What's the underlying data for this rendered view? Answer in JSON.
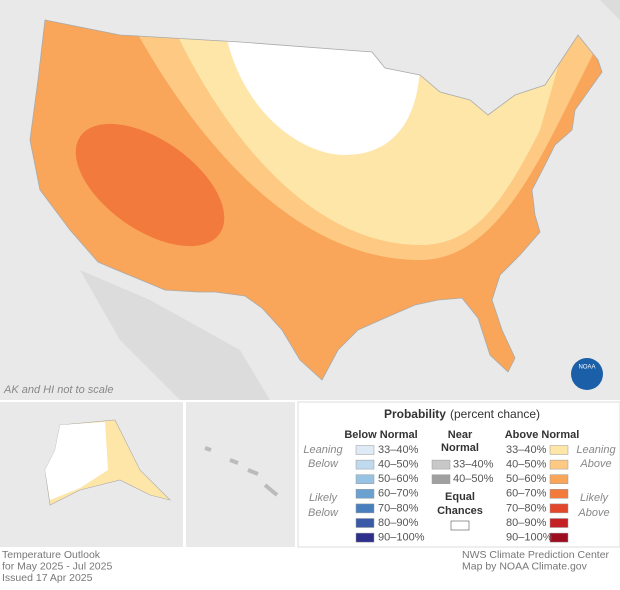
{
  "map": {
    "note": "AK and HI not to scale",
    "logo": "NOAA"
  },
  "legend": {
    "title": "Probability",
    "subtitle": "(percent chance)",
    "below": {
      "heading": "Below Normal",
      "ranges": [
        "33–40%",
        "40–50%",
        "50–60%",
        "60–70%",
        "70–80%",
        "80–90%",
        "90–100%"
      ],
      "colors": [
        "#deebf7",
        "#bfd9ee",
        "#97c2e1",
        "#6ba1d0",
        "#4a7fbd",
        "#3a5aa7",
        "#2e2e8c"
      ],
      "leaning": [
        "Leaning",
        "Below"
      ],
      "likely": [
        "Likely",
        "Below"
      ]
    },
    "near": {
      "heading": [
        "Near",
        "Normal"
      ],
      "ranges": [
        "33–40%",
        "40–50%"
      ],
      "colors": [
        "#c8c8c8",
        "#a0a0a0"
      ]
    },
    "equal": {
      "label": [
        "Equal",
        "Chances"
      ],
      "color": "#ffffff"
    },
    "above": {
      "heading": "Above Normal",
      "ranges": [
        "33–40%",
        "40–50%",
        "50–60%",
        "60–70%",
        "70–80%",
        "80–90%",
        "90–100%"
      ],
      "colors": [
        "#fde6a8",
        "#fdc983",
        "#f9a65a",
        "#f27a3d",
        "#e3472b",
        "#c62027",
        "#9d0d1f"
      ],
      "leaning": [
        "Leaning",
        "Above"
      ],
      "likely": [
        "Likely",
        "Above"
      ]
    }
  },
  "footer": {
    "left": [
      "Temperature Outlook",
      "for May 2025 - Jul 2025",
      "Issued 17 Apr 2025"
    ],
    "right": [
      "NWS Climate Prediction Center",
      "Map by NOAA Climate.gov"
    ]
  }
}
